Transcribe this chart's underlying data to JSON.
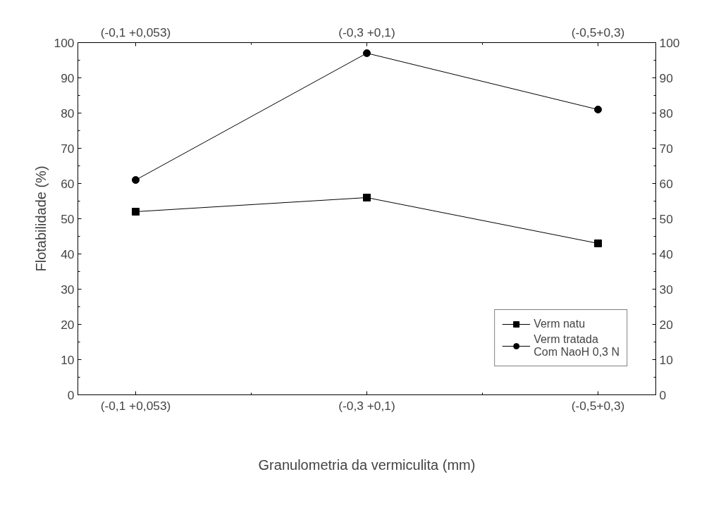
{
  "chart_data": {
    "type": "line",
    "xlabel": "Granulometria da vermiculita (mm)",
    "ylabel": "Flotabilidade (%)",
    "categories": [
      "(-0,1 +0,053)",
      "(-0,3 +0,1)",
      "(-0,5+0,3)"
    ],
    "series": [
      {
        "name": "Verm natu",
        "color": "#000000",
        "marker": "square",
        "values": [
          52,
          56,
          43
        ]
      },
      {
        "name": "Verm tratada\nCom NaoH 0,3 N",
        "color": "#000000",
        "marker": "circle",
        "values": [
          61,
          97,
          81
        ]
      }
    ],
    "ylim": [
      0,
      100
    ],
    "yticks": [
      0,
      10,
      20,
      30,
      40,
      50,
      60,
      70,
      80,
      90,
      100
    ],
    "y2lim": [
      0,
      100
    ],
    "y2ticks": [
      0,
      10,
      20,
      30,
      40,
      50,
      60,
      70,
      80,
      90,
      100
    ],
    "grid": false,
    "legend": "bottom right",
    "line_style": "solid"
  }
}
